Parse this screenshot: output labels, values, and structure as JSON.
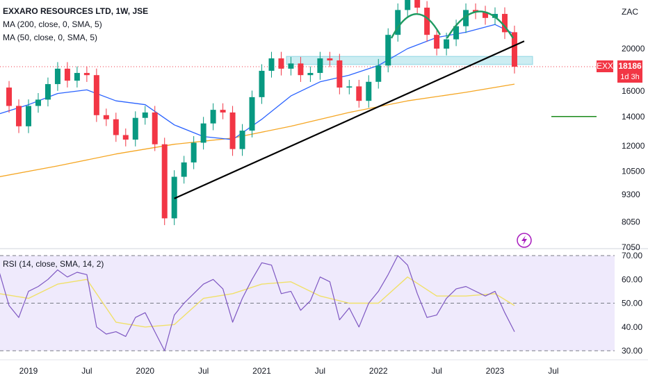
{
  "legend": {
    "title": "EXXARO RESOURCES LTD, 1W, JSE",
    "ma200": "MA (200, close, 0, SMA, 5)",
    "ma50": "MA (50, close, 0, SMA, 5)",
    "rsi": "RSI (14, close, SMA, 14, 2)"
  },
  "currency": "ZAC",
  "last_price": {
    "symbol": "EXX",
    "value": "18186",
    "countdown": "1d 3h"
  },
  "colors": {
    "candle_up": "#089981",
    "candle_down": "#f23645",
    "ma200": "#f5a623",
    "ma50": "#2962ff",
    "trendline": "#000000",
    "pattern": "#1f9b62",
    "zone": "#8fd6e3",
    "target": "#1a8a1a",
    "rsi": "#7e57c2",
    "rsi_ma": "#f0e068",
    "rsi_bg": "#efeafc",
    "price_tag": "#f23645"
  },
  "icons": [
    "flash-icon"
  ],
  "chart_data": [
    {
      "type": "line",
      "name": "price-panel",
      "title": "EXXARO RESOURCES LTD, 1W, JSE",
      "y_scale": "log",
      "y_ticks": [
        7050,
        8050,
        9300,
        10500,
        12000,
        14000,
        16000,
        20000
      ],
      "ylim": [
        6900,
        30000
      ],
      "x_ticks": [
        "2019",
        "Jul",
        "2020",
        "Jul",
        "2021",
        "Jul",
        "2022",
        "Jul",
        "2023",
        "Jul"
      ],
      "x_tick_dates": [
        "2019-01",
        "2019-07",
        "2020-01",
        "2020-07",
        "2021-01",
        "2021-07",
        "2022-01",
        "2022-07",
        "2023-01",
        "2023-07"
      ],
      "close": [
        [
          "2018-10",
          16300
        ],
        [
          "2018-11",
          14800
        ],
        [
          "2018-12",
          13300
        ],
        [
          "2019-01",
          14800
        ],
        [
          "2019-02",
          15300
        ],
        [
          "2019-03",
          16600
        ],
        [
          "2019-04",
          18000
        ],
        [
          "2019-05",
          16900
        ],
        [
          "2019-06",
          17600
        ],
        [
          "2019-07",
          17400
        ],
        [
          "2019-08",
          14100
        ],
        [
          "2019-09",
          13800
        ],
        [
          "2019-10",
          12700
        ],
        [
          "2019-11",
          12400
        ],
        [
          "2019-12",
          13900
        ],
        [
          "2020-01",
          14300
        ],
        [
          "2020-02",
          12100
        ],
        [
          "2020-03",
          8200
        ],
        [
          "2020-04",
          10200
        ],
        [
          "2020-05",
          11000
        ],
        [
          "2020-06",
          12200
        ],
        [
          "2020-07",
          13500
        ],
        [
          "2020-08",
          14500
        ],
        [
          "2020-09",
          14300
        ],
        [
          "2020-10",
          11800
        ],
        [
          "2020-11",
          13000
        ],
        [
          "2020-12",
          15500
        ],
        [
          "2021-01",
          17800
        ],
        [
          "2021-02",
          19000
        ],
        [
          "2021-03",
          18000
        ],
        [
          "2021-04",
          18500
        ],
        [
          "2021-05",
          17400
        ],
        [
          "2021-06",
          17600
        ],
        [
          "2021-07",
          19000
        ],
        [
          "2021-08",
          18800
        ],
        [
          "2021-09",
          16300
        ],
        [
          "2021-10",
          16400
        ],
        [
          "2021-11",
          15200
        ],
        [
          "2021-12",
          16800
        ],
        [
          "2022-01",
          18300
        ],
        [
          "2022-02",
          21500
        ],
        [
          "2022-03",
          24500
        ],
        [
          "2022-04",
          26000
        ],
        [
          "2022-05",
          24800
        ],
        [
          "2022-06",
          21500
        ],
        [
          "2022-07",
          20000
        ],
        [
          "2022-08",
          21000
        ],
        [
          "2022-09",
          22500
        ],
        [
          "2022-10",
          24500
        ],
        [
          "2022-11",
          24200
        ],
        [
          "2022-12",
          23500
        ],
        [
          "2023-01",
          24000
        ],
        [
          "2023-02",
          21800
        ],
        [
          "2023-03",
          18186
        ]
      ],
      "ma50": [
        [
          "2018-10",
          14200
        ],
        [
          "2019-01",
          14900
        ],
        [
          "2019-04",
          15800
        ],
        [
          "2019-07",
          16100
        ],
        [
          "2019-10",
          15200
        ],
        [
          "2020-01",
          14900
        ],
        [
          "2020-04",
          13400
        ],
        [
          "2020-07",
          12600
        ],
        [
          "2020-10",
          12400
        ],
        [
          "2021-01",
          13800
        ],
        [
          "2021-04",
          15600
        ],
        [
          "2021-07",
          16800
        ],
        [
          "2021-10",
          17400
        ],
        [
          "2022-01",
          18300
        ],
        [
          "2022-04",
          20000
        ],
        [
          "2022-07",
          21200
        ],
        [
          "2022-10",
          21800
        ],
        [
          "2023-01",
          22700
        ],
        [
          "2023-03",
          21600
        ]
      ],
      "ma200": [
        [
          "2018-10",
          10200
        ],
        [
          "2019-04",
          10800
        ],
        [
          "2019-10",
          11500
        ],
        [
          "2020-04",
          12100
        ],
        [
          "2020-10",
          12500
        ],
        [
          "2021-04",
          13300
        ],
        [
          "2021-10",
          14300
        ],
        [
          "2022-04",
          15200
        ],
        [
          "2022-10",
          15900
        ],
        [
          "2023-03",
          16600
        ]
      ],
      "trendline": [
        [
          "2020-04",
          9100
        ],
        [
          "2023-04",
          20800
        ]
      ],
      "support_zone": [
        18400,
        19200
      ],
      "target_level": 14000,
      "head_and_shoulders": [
        "left shoulder",
        "head"
      ]
    },
    {
      "type": "line",
      "name": "rsi-panel",
      "title": "RSI (14, close, SMA, 14, 2)",
      "y_ticks": [
        30,
        40,
        50,
        60,
        70
      ],
      "ylim": [
        27,
        74
      ],
      "bands": [
        30,
        50,
        70
      ],
      "rsi": [
        [
          "2018-10",
          63
        ],
        [
          "2018-11",
          49
        ],
        [
          "2018-12",
          44
        ],
        [
          "2019-01",
          55
        ],
        [
          "2019-02",
          57
        ],
        [
          "2019-03",
          60
        ],
        [
          "2019-04",
          64
        ],
        [
          "2019-05",
          61
        ],
        [
          "2019-06",
          63
        ],
        [
          "2019-07",
          62
        ],
        [
          "2019-08",
          40
        ],
        [
          "2019-09",
          37
        ],
        [
          "2019-10",
          38
        ],
        [
          "2019-11",
          36
        ],
        [
          "2019-12",
          44
        ],
        [
          "2020-01",
          46
        ],
        [
          "2020-02",
          38
        ],
        [
          "2020-03",
          30
        ],
        [
          "2020-04",
          45
        ],
        [
          "2020-05",
          50
        ],
        [
          "2020-06",
          54
        ],
        [
          "2020-07",
          58
        ],
        [
          "2020-08",
          60
        ],
        [
          "2020-09",
          56
        ],
        [
          "2020-10",
          42
        ],
        [
          "2020-11",
          52
        ],
        [
          "2020-12",
          60
        ],
        [
          "2021-01",
          67
        ],
        [
          "2021-02",
          66
        ],
        [
          "2021-03",
          54
        ],
        [
          "2021-04",
          55
        ],
        [
          "2021-05",
          47
        ],
        [
          "2021-06",
          51
        ],
        [
          "2021-07",
          61
        ],
        [
          "2021-08",
          59
        ],
        [
          "2021-09",
          43
        ],
        [
          "2021-10",
          48
        ],
        [
          "2021-11",
          40
        ],
        [
          "2021-12",
          50
        ],
        [
          "2022-01",
          55
        ],
        [
          "2022-02",
          62
        ],
        [
          "2022-03",
          70
        ],
        [
          "2022-04",
          66
        ],
        [
          "2022-05",
          54
        ],
        [
          "2022-06",
          44
        ],
        [
          "2022-07",
          45
        ],
        [
          "2022-08",
          52
        ],
        [
          "2022-09",
          56
        ],
        [
          "2022-10",
          57
        ],
        [
          "2022-11",
          55
        ],
        [
          "2022-12",
          53
        ],
        [
          "2023-01",
          55
        ],
        [
          "2023-02",
          46
        ],
        [
          "2023-03",
          38
        ]
      ],
      "rsi_ma": [
        [
          "2018-10",
          54
        ],
        [
          "2019-01",
          52
        ],
        [
          "2019-04",
          58
        ],
        [
          "2019-07",
          60
        ],
        [
          "2019-10",
          42
        ],
        [
          "2020-01",
          40
        ],
        [
          "2020-04",
          41
        ],
        [
          "2020-07",
          52
        ],
        [
          "2020-10",
          54
        ],
        [
          "2021-01",
          58
        ],
        [
          "2021-04",
          59
        ],
        [
          "2021-07",
          53
        ],
        [
          "2021-10",
          50
        ],
        [
          "2022-01",
          50
        ],
        [
          "2022-04",
          61
        ],
        [
          "2022-07",
          53
        ],
        [
          "2022-10",
          53
        ],
        [
          "2023-01",
          54
        ],
        [
          "2023-03",
          49
        ]
      ]
    }
  ]
}
